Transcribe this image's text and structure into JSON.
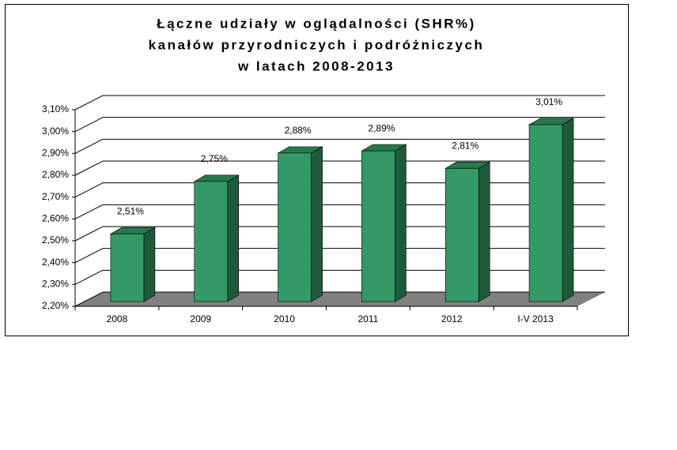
{
  "chart_data": {
    "type": "bar3d",
    "title": [
      "Łączne udziały w oglądalności (SHR%)",
      "kanałów przyrodniczych i podróżniczych",
      "w latach 2008-2013"
    ],
    "categories": [
      "2008",
      "2009",
      "2010",
      "2011",
      "2012",
      "I-V 2013"
    ],
    "values": [
      2.51,
      2.75,
      2.88,
      2.89,
      2.81,
      3.01
    ],
    "value_labels": [
      "2,51%",
      "2,75%",
      "2,88%",
      "2,89%",
      "2,81%",
      "3,01%"
    ],
    "color": "#339966",
    "ylim": [
      2.2,
      3.1
    ],
    "yticks": [
      {
        "value": 2.2,
        "label": "2,20%"
      },
      {
        "value": 2.3,
        "label": "2,30%"
      },
      {
        "value": 2.4,
        "label": "2,40%"
      },
      {
        "value": 2.5,
        "label": "2,50%"
      },
      {
        "value": 2.6,
        "label": "2,60%"
      },
      {
        "value": 2.7,
        "label": "2,70%"
      },
      {
        "value": 2.8,
        "label": "2,80%"
      },
      {
        "value": 2.9,
        "label": "2,90%"
      },
      {
        "value": 3.0,
        "label": "3,00%"
      },
      {
        "value": 3.1,
        "label": "3,10%"
      }
    ],
    "grid": true
  }
}
